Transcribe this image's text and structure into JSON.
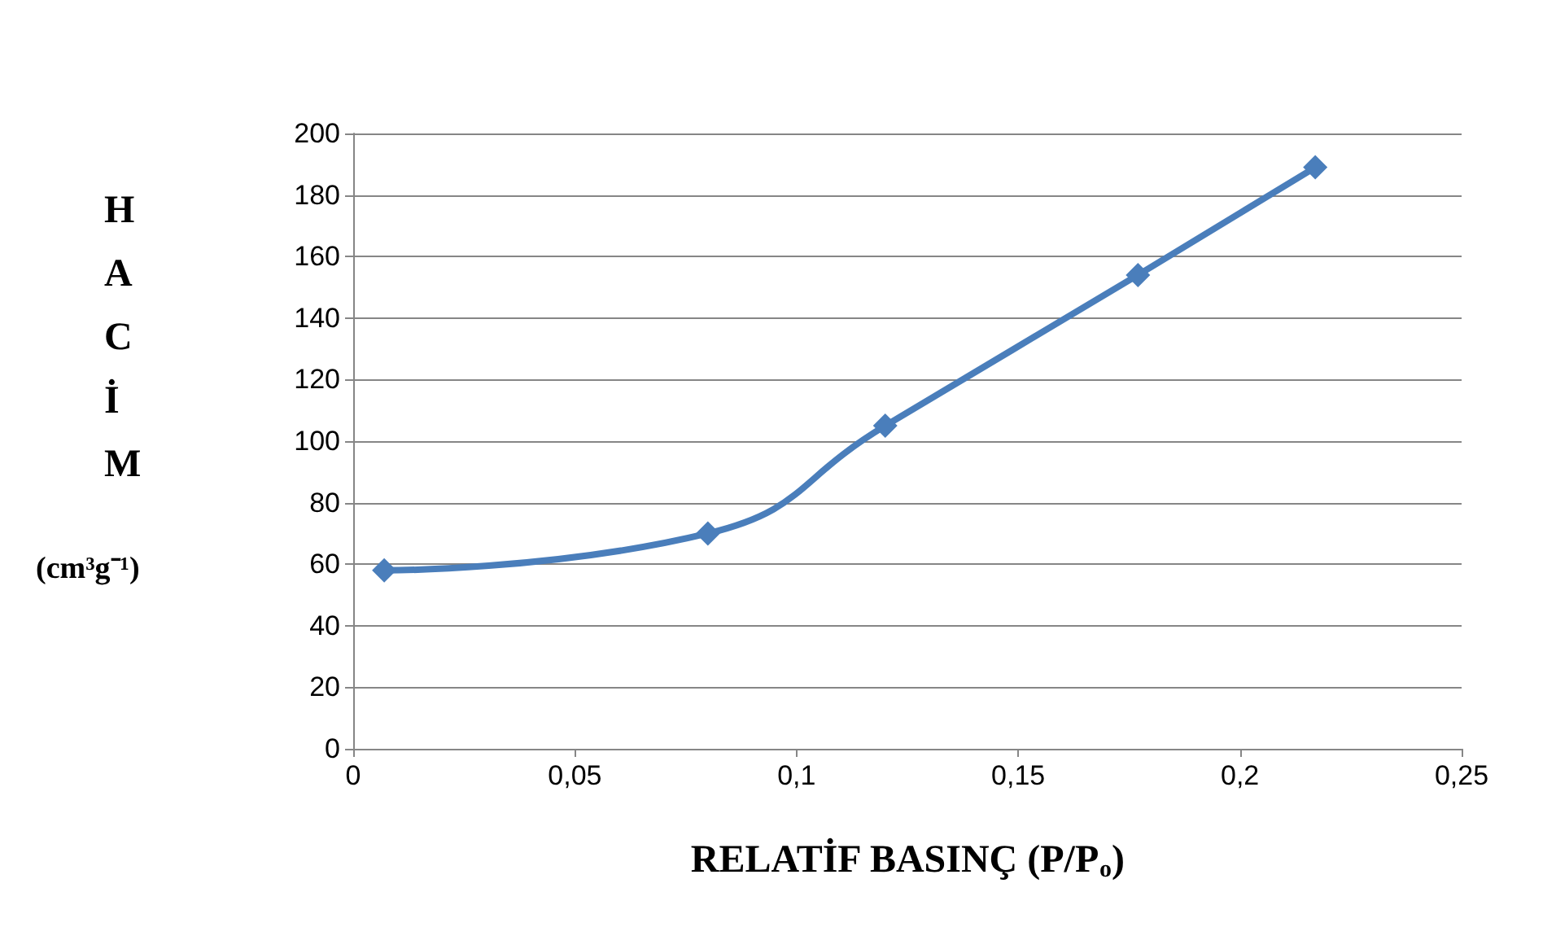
{
  "chart_data": {
    "type": "line",
    "xlabel": "RELATİF BASINÇ (P/P$_{o}$)",
    "ylabel": "HACİM (cm³g⁻¹)",
    "series": [
      {
        "color": "#4a7ebb",
        "x": [
          0.007,
          0.08,
          0.12,
          0.177,
          0.217
        ],
        "values": [
          58,
          70,
          105,
          154,
          189
        ]
      }
    ],
    "xlim": [
      0,
      0.25
    ],
    "xticks": [
      0,
      {
        "value": 0.05,
        "label": "0,05"
      },
      {
        "value": 0.1,
        "label": "0,1"
      },
      {
        "value": 0.15,
        "label": "0,15"
      },
      {
        "value": 0.2,
        "label": "0,2"
      },
      {
        "value": 0.25,
        "label": "0,25"
      }
    ],
    "ylim": [
      0,
      200
    ],
    "yticks": [
      0,
      20,
      40,
      60,
      80,
      100,
      120,
      140,
      160,
      180,
      200
    ],
    "grid": "y",
    "marker": "diamond",
    "line_style": "solid"
  }
}
